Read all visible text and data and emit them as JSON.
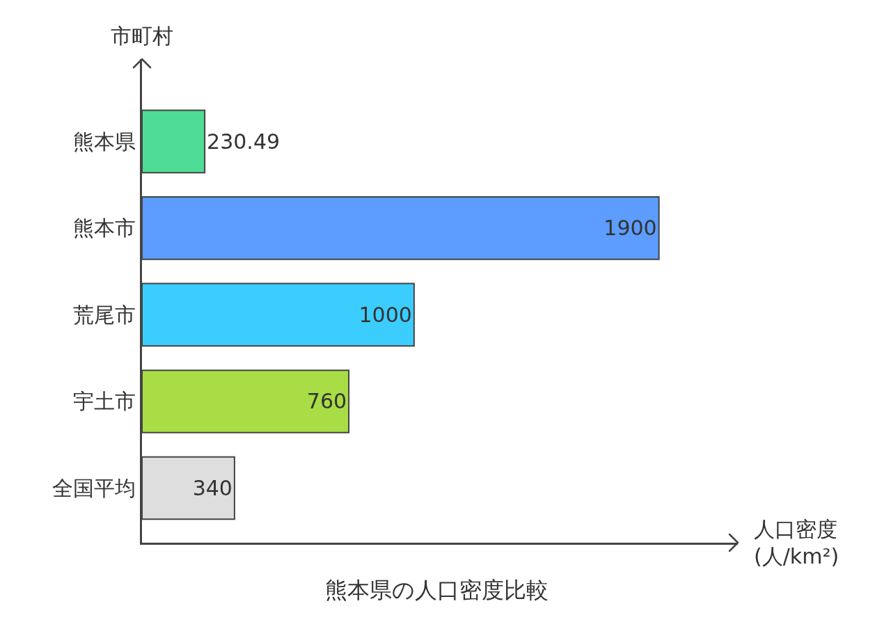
{
  "chart_data": {
    "type": "bar",
    "orientation": "horizontal",
    "title": "熊本県の人口密度比較",
    "xlabel": "人口密度 (人/km²)",
    "ylabel": "市町村",
    "categories": [
      "熊本県",
      "熊本市",
      "荒尾市",
      "宇土市",
      "全国平均"
    ],
    "values": [
      230.49,
      1900,
      1000,
      760,
      340
    ],
    "colors": [
      "#4fdc96",
      "#5c9dff",
      "#3ccdff",
      "#a9dd45",
      "#dedede"
    ],
    "xlim": [
      0,
      2190
    ],
    "data_labels": true,
    "tick_labels": "y"
  }
}
